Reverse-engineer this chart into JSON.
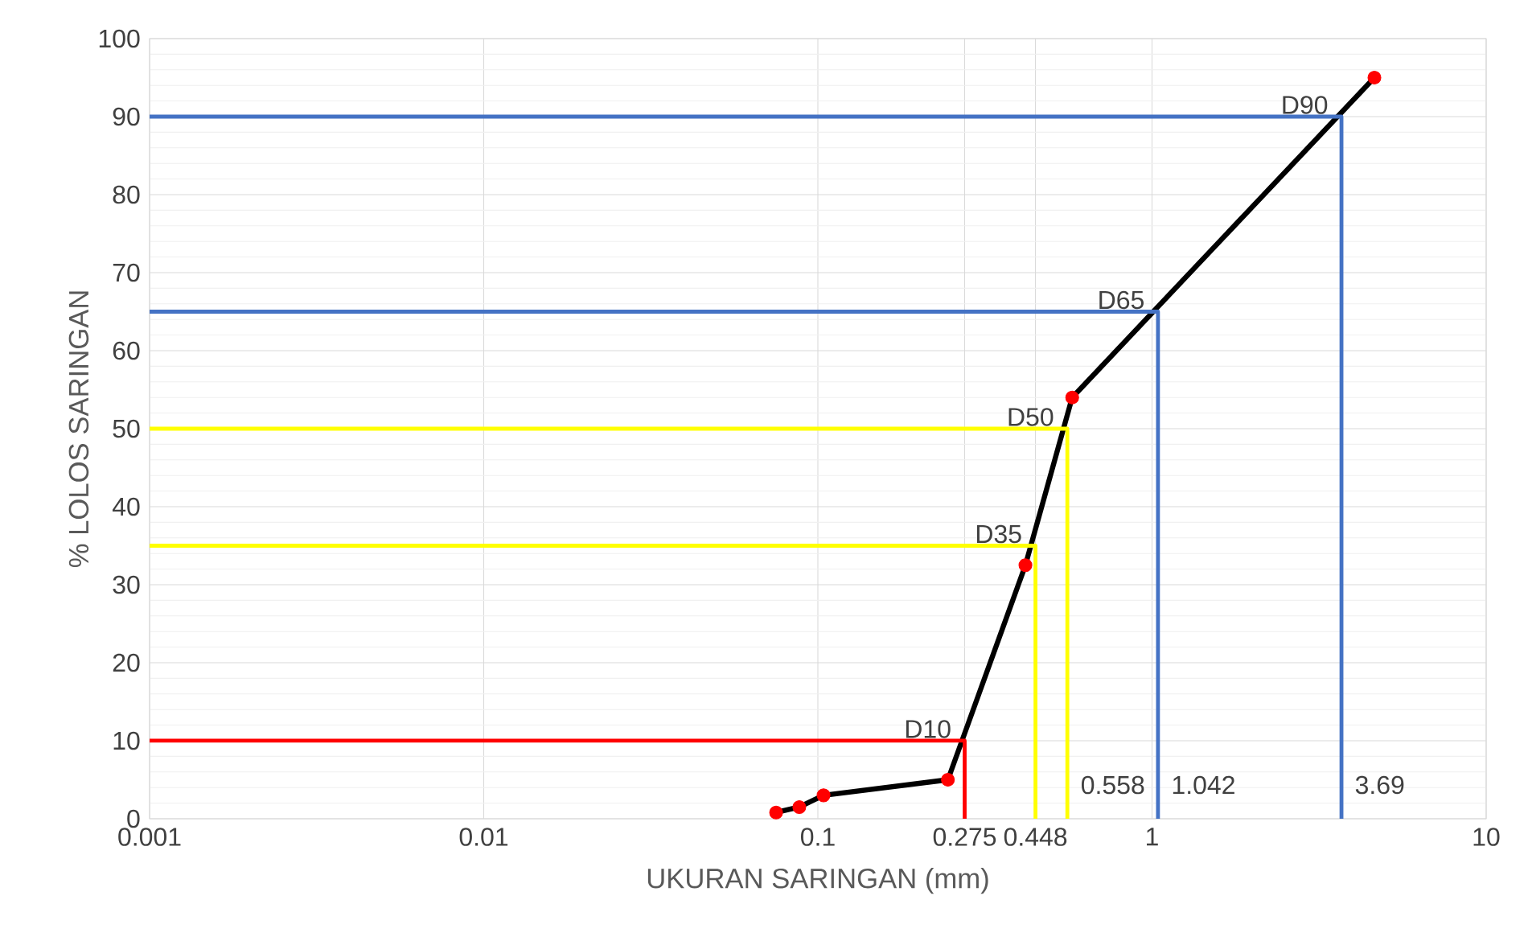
{
  "chart_data": {
    "type": "line",
    "xlabel": "UKURAN SARINGAN (mm)",
    "ylabel": "% LOLOS SARINGAN",
    "log": "x",
    "xlim": [
      0.001,
      10
    ],
    "xticks": [
      0.001,
      0.01,
      0.1,
      {
        "value": 0.275,
        "label": "0.275"
      },
      {
        "value": 0.448,
        "label": "0.448"
      },
      1,
      10
    ],
    "ylim": [
      0,
      100
    ],
    "yticks": [
      0,
      10,
      20,
      30,
      40,
      50,
      60,
      70,
      80,
      90,
      100
    ],
    "grid": true,
    "marker": "circle",
    "line_style": "solid",
    "series": [
      {
        "color": "#000000",
        "colors": [
          "#ff0000",
          "#ff0000",
          "#ff0000",
          "#ff0000",
          "#ff0000",
          "#ff0000",
          "#ff0000"
        ],
        "x": [
          0.075,
          0.088,
          0.104,
          0.245,
          0.418,
          0.577,
          4.63
        ],
        "values": [
          0.8,
          1.5,
          3,
          5,
          32.5,
          54,
          95
        ]
      },
      {
        "marker": "none",
        "name": "D10",
        "color": "#ff0000",
        "x": [
          0.001,
          0.275,
          0.275
        ],
        "values": [
          10,
          10,
          0
        ]
      },
      {
        "marker": "none",
        "name": "D35",
        "color": "#ffff00",
        "x": [
          0.001,
          0.448,
          0.448
        ],
        "values": [
          35,
          35,
          0
        ]
      },
      {
        "marker": "none",
        "name": "D50",
        "color": "#ffff00",
        "x": [
          0.001,
          0.558,
          0.558
        ],
        "values": [
          50,
          50,
          0
        ]
      },
      {
        "marker": "none",
        "name": "D65",
        "color": "#4472c4",
        "x": [
          0.001,
          1.042,
          1.042
        ],
        "values": [
          65,
          65,
          0
        ]
      },
      {
        "marker": "none",
        "name": "D90",
        "color": "#4472c4",
        "x": [
          0.001,
          3.69,
          3.69
        ],
        "values": [
          90,
          90,
          0
        ]
      }
    ],
    "annotations": [
      {
        "text": "0.558",
        "x": 0.558,
        "y": 2
      },
      {
        "text": "1.042",
        "x": 1.042,
        "y": 2
      },
      {
        "text": "3.69",
        "x": 3.69,
        "y": 2
      }
    ]
  }
}
